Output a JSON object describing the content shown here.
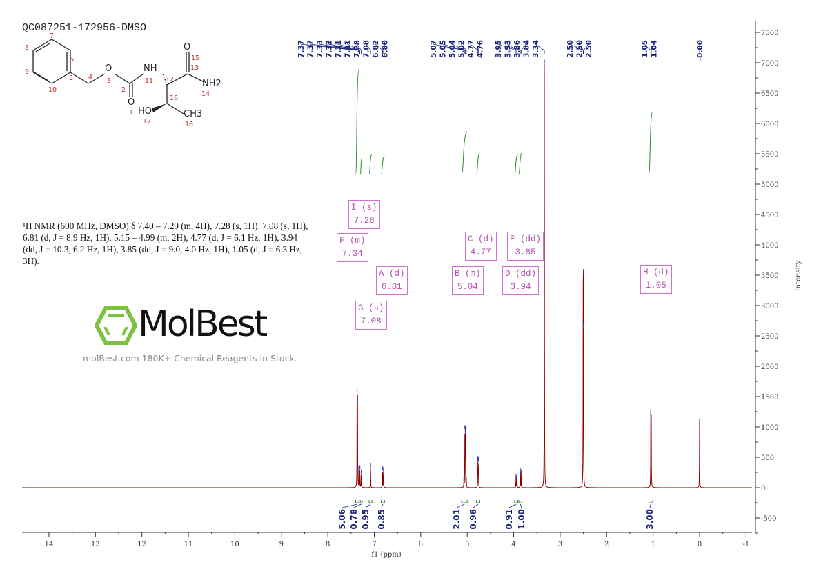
{
  "sample_name": "QC087251-172956-DMSO",
  "description": "¹H NMR (600 MHz, DMSO) δ 7.40 – 7.29 (m, 4H), 7.28 (s, 1H), 7.08 (s, 1H), 6.81 (d, J = 8.9 Hz, 1H), 5.15 – 4.99 (m, 2H), 4.77 (d, J = 6.1 Hz, 1H), 3.94 (dd, J = 10.3, 6.2 Hz, 1H), 3.85 (dd, J = 9.0, 4.0 Hz, 1H), 1.05 (d, J = 6.3 Hz, 3H).",
  "watermark": {
    "logo": "MolBest",
    "tagline": "molBest.com 180K+ Chemical Reagents In Stock."
  },
  "molecule": {
    "atoms": [
      "O",
      "O",
      "NH",
      "O",
      "NH2",
      "HO",
      "CH3"
    ],
    "numbers": [
      "1",
      "2",
      "3",
      "4",
      "5",
      "6",
      "7",
      "8",
      "9",
      "10",
      "11",
      "12",
      "13",
      "14",
      "15",
      "16",
      "17",
      "18"
    ]
  },
  "colors": {
    "spectrum": "#8b0000",
    "integral": "#2e8b2e",
    "peak_label": "#1a237e",
    "multiplet_box": "#d070d0"
  },
  "chart_data": {
    "type": "line",
    "xlabel": "f1 (ppm)",
    "ylabel": "Intensity",
    "xlim": [
      14.6,
      -1.1
    ],
    "ylim": [
      -700,
      7700
    ],
    "x_ticks": [
      "14",
      "13",
      "12",
      "11",
      "10",
      "9",
      "8",
      "7",
      "6",
      "5",
      "4",
      "3",
      "2",
      "1",
      "0",
      "-1"
    ],
    "y_ticks": [
      "7500",
      "7000",
      "6500",
      "6000",
      "5500",
      "5000",
      "4500",
      "4000",
      "3500",
      "3000",
      "2500",
      "2000",
      "1500",
      "1000",
      "500",
      "0",
      "-500"
    ],
    "peak_labels": [
      "7.37",
      "7.37",
      "7.33",
      "7.32",
      "7.31",
      "7.31",
      "7.28",
      "7.08",
      "6.82",
      "6.80",
      "5.07",
      "5.05",
      "5.04",
      "5.02",
      "4.77",
      "4.76",
      "3.95",
      "3.93",
      "3.86",
      "3.84",
      "3.34",
      "2.50",
      "2.50",
      "2.50",
      "1.05",
      "1.04",
      "-0.00"
    ],
    "peaks": [
      {
        "ppm": 7.37,
        "intensity": 1650
      },
      {
        "ppm": 7.36,
        "intensity": 1450
      },
      {
        "ppm": 7.33,
        "intensity": 330
      },
      {
        "ppm": 7.31,
        "intensity": 370
      },
      {
        "ppm": 7.28,
        "intensity": 300
      },
      {
        "ppm": 7.08,
        "intensity": 400
      },
      {
        "ppm": 6.82,
        "intensity": 350
      },
      {
        "ppm": 6.8,
        "intensity": 330
      },
      {
        "ppm": 5.07,
        "intensity": 180
      },
      {
        "ppm": 5.05,
        "intensity": 1030
      },
      {
        "ppm": 5.04,
        "intensity": 950
      },
      {
        "ppm": 5.02,
        "intensity": 180
      },
      {
        "ppm": 4.77,
        "intensity": 520
      },
      {
        "ppm": 4.76,
        "intensity": 500
      },
      {
        "ppm": 3.95,
        "intensity": 220
      },
      {
        "ppm": 3.93,
        "intensity": 200
      },
      {
        "ppm": 3.86,
        "intensity": 320
      },
      {
        "ppm": 3.84,
        "intensity": 300
      },
      {
        "ppm": 3.34,
        "intensity": 7050
      },
      {
        "ppm": 2.5,
        "intensity": 3600
      },
      {
        "ppm": 2.505,
        "intensity": 2700
      },
      {
        "ppm": 1.05,
        "intensity": 1250
      },
      {
        "ppm": 1.04,
        "intensity": 1200
      },
      {
        "ppm": 0.0,
        "intensity": 1130
      }
    ],
    "integrals": [
      {
        "range": [
          7.4,
          7.33
        ],
        "value": "5.06"
      },
      {
        "range": [
          7.3,
          7.26
        ],
        "value": "0.78"
      },
      {
        "range": [
          7.11,
          7.05
        ],
        "value": "0.95"
      },
      {
        "range": [
          6.85,
          6.78
        ],
        "value": "0.85"
      },
      {
        "range": [
          5.12,
          5.0
        ],
        "value": "2.01"
      },
      {
        "range": [
          4.8,
          4.73
        ],
        "value": "0.98"
      },
      {
        "range": [
          3.98,
          3.91
        ],
        "value": "0.91"
      },
      {
        "range": [
          3.89,
          3.82
        ],
        "value": "1.00"
      },
      {
        "range": [
          1.09,
          1.01
        ],
        "value": "3.00"
      }
    ],
    "multiplets": [
      {
        "label": "I (s)",
        "shift": "7.28"
      },
      {
        "label": "F (m)",
        "shift": "7.34"
      },
      {
        "label": "A (d)",
        "shift": "6.81"
      },
      {
        "label": "G (s)",
        "shift": "7.08"
      },
      {
        "label": "B (m)",
        "shift": "5.04"
      },
      {
        "label": "C (d)",
        "shift": "4.77"
      },
      {
        "label": "E (dd)",
        "shift": "3.85"
      },
      {
        "label": "D (dd)",
        "shift": "3.94"
      },
      {
        "label": "H (d)",
        "shift": "1.05"
      }
    ]
  }
}
